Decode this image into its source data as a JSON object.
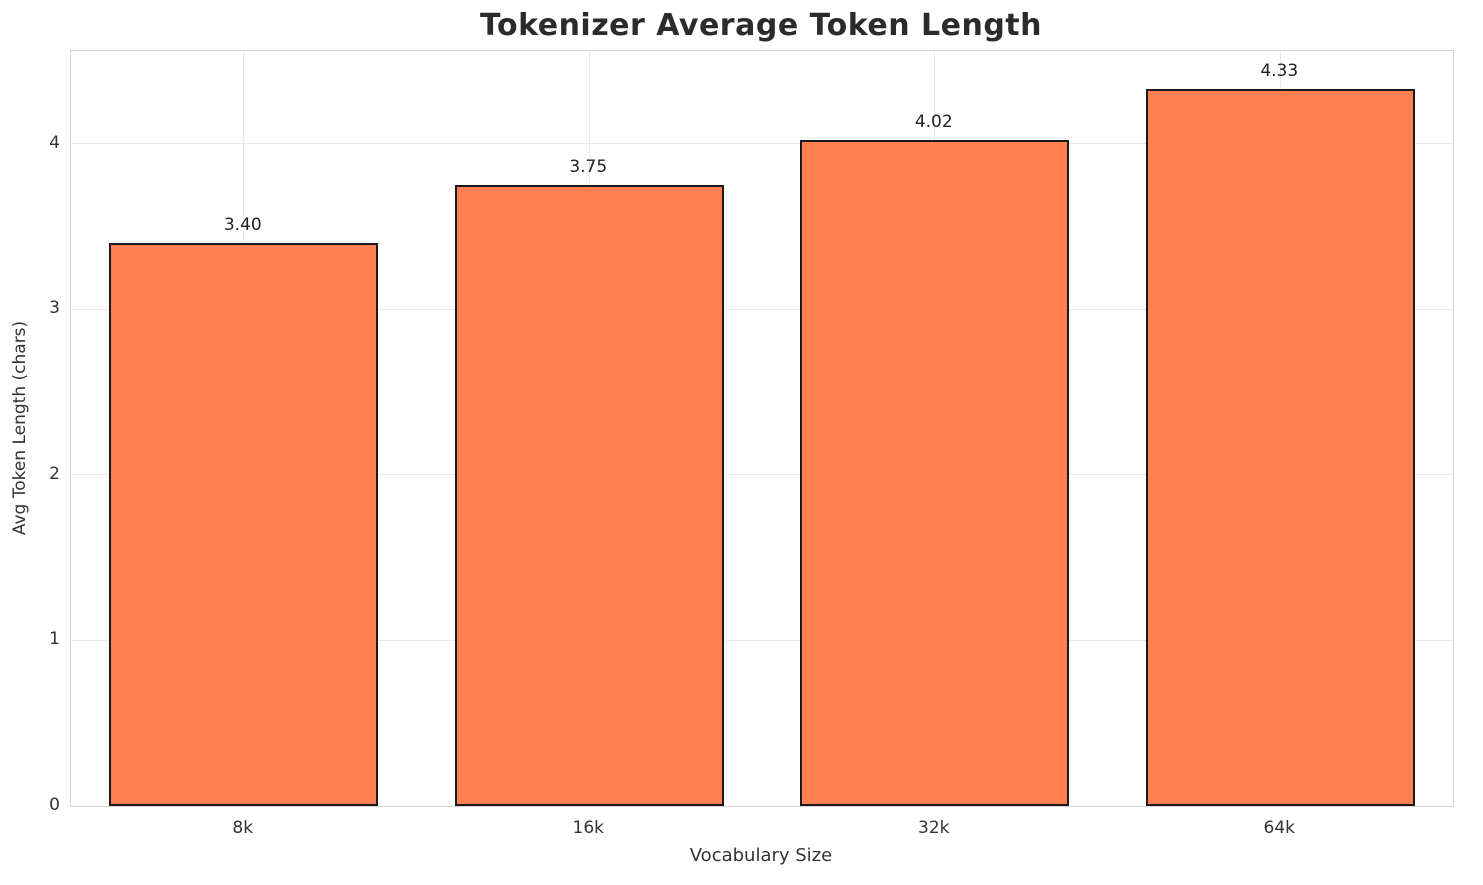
{
  "chart_data": {
    "type": "bar",
    "title": "Tokenizer Average Token Length",
    "xlabel": "Vocabulary Size",
    "ylabel": "Avg Token Length (chars)",
    "categories": [
      "8k",
      "16k",
      "32k",
      "64k"
    ],
    "values": [
      3.4,
      3.75,
      4.02,
      4.33
    ],
    "value_labels": [
      "3.40",
      "3.75",
      "4.02",
      "4.33"
    ],
    "yticks": [
      0,
      1,
      2,
      3,
      4
    ],
    "ylim": [
      0,
      4.56
    ],
    "grid": true,
    "legend": "none",
    "bar_color": "#FF7F50",
    "bar_edge_color": "#1a1a1a",
    "grid_color": "#e9e9e9",
    "title_color": "#2b2b2b",
    "tick_color": "#333333"
  }
}
